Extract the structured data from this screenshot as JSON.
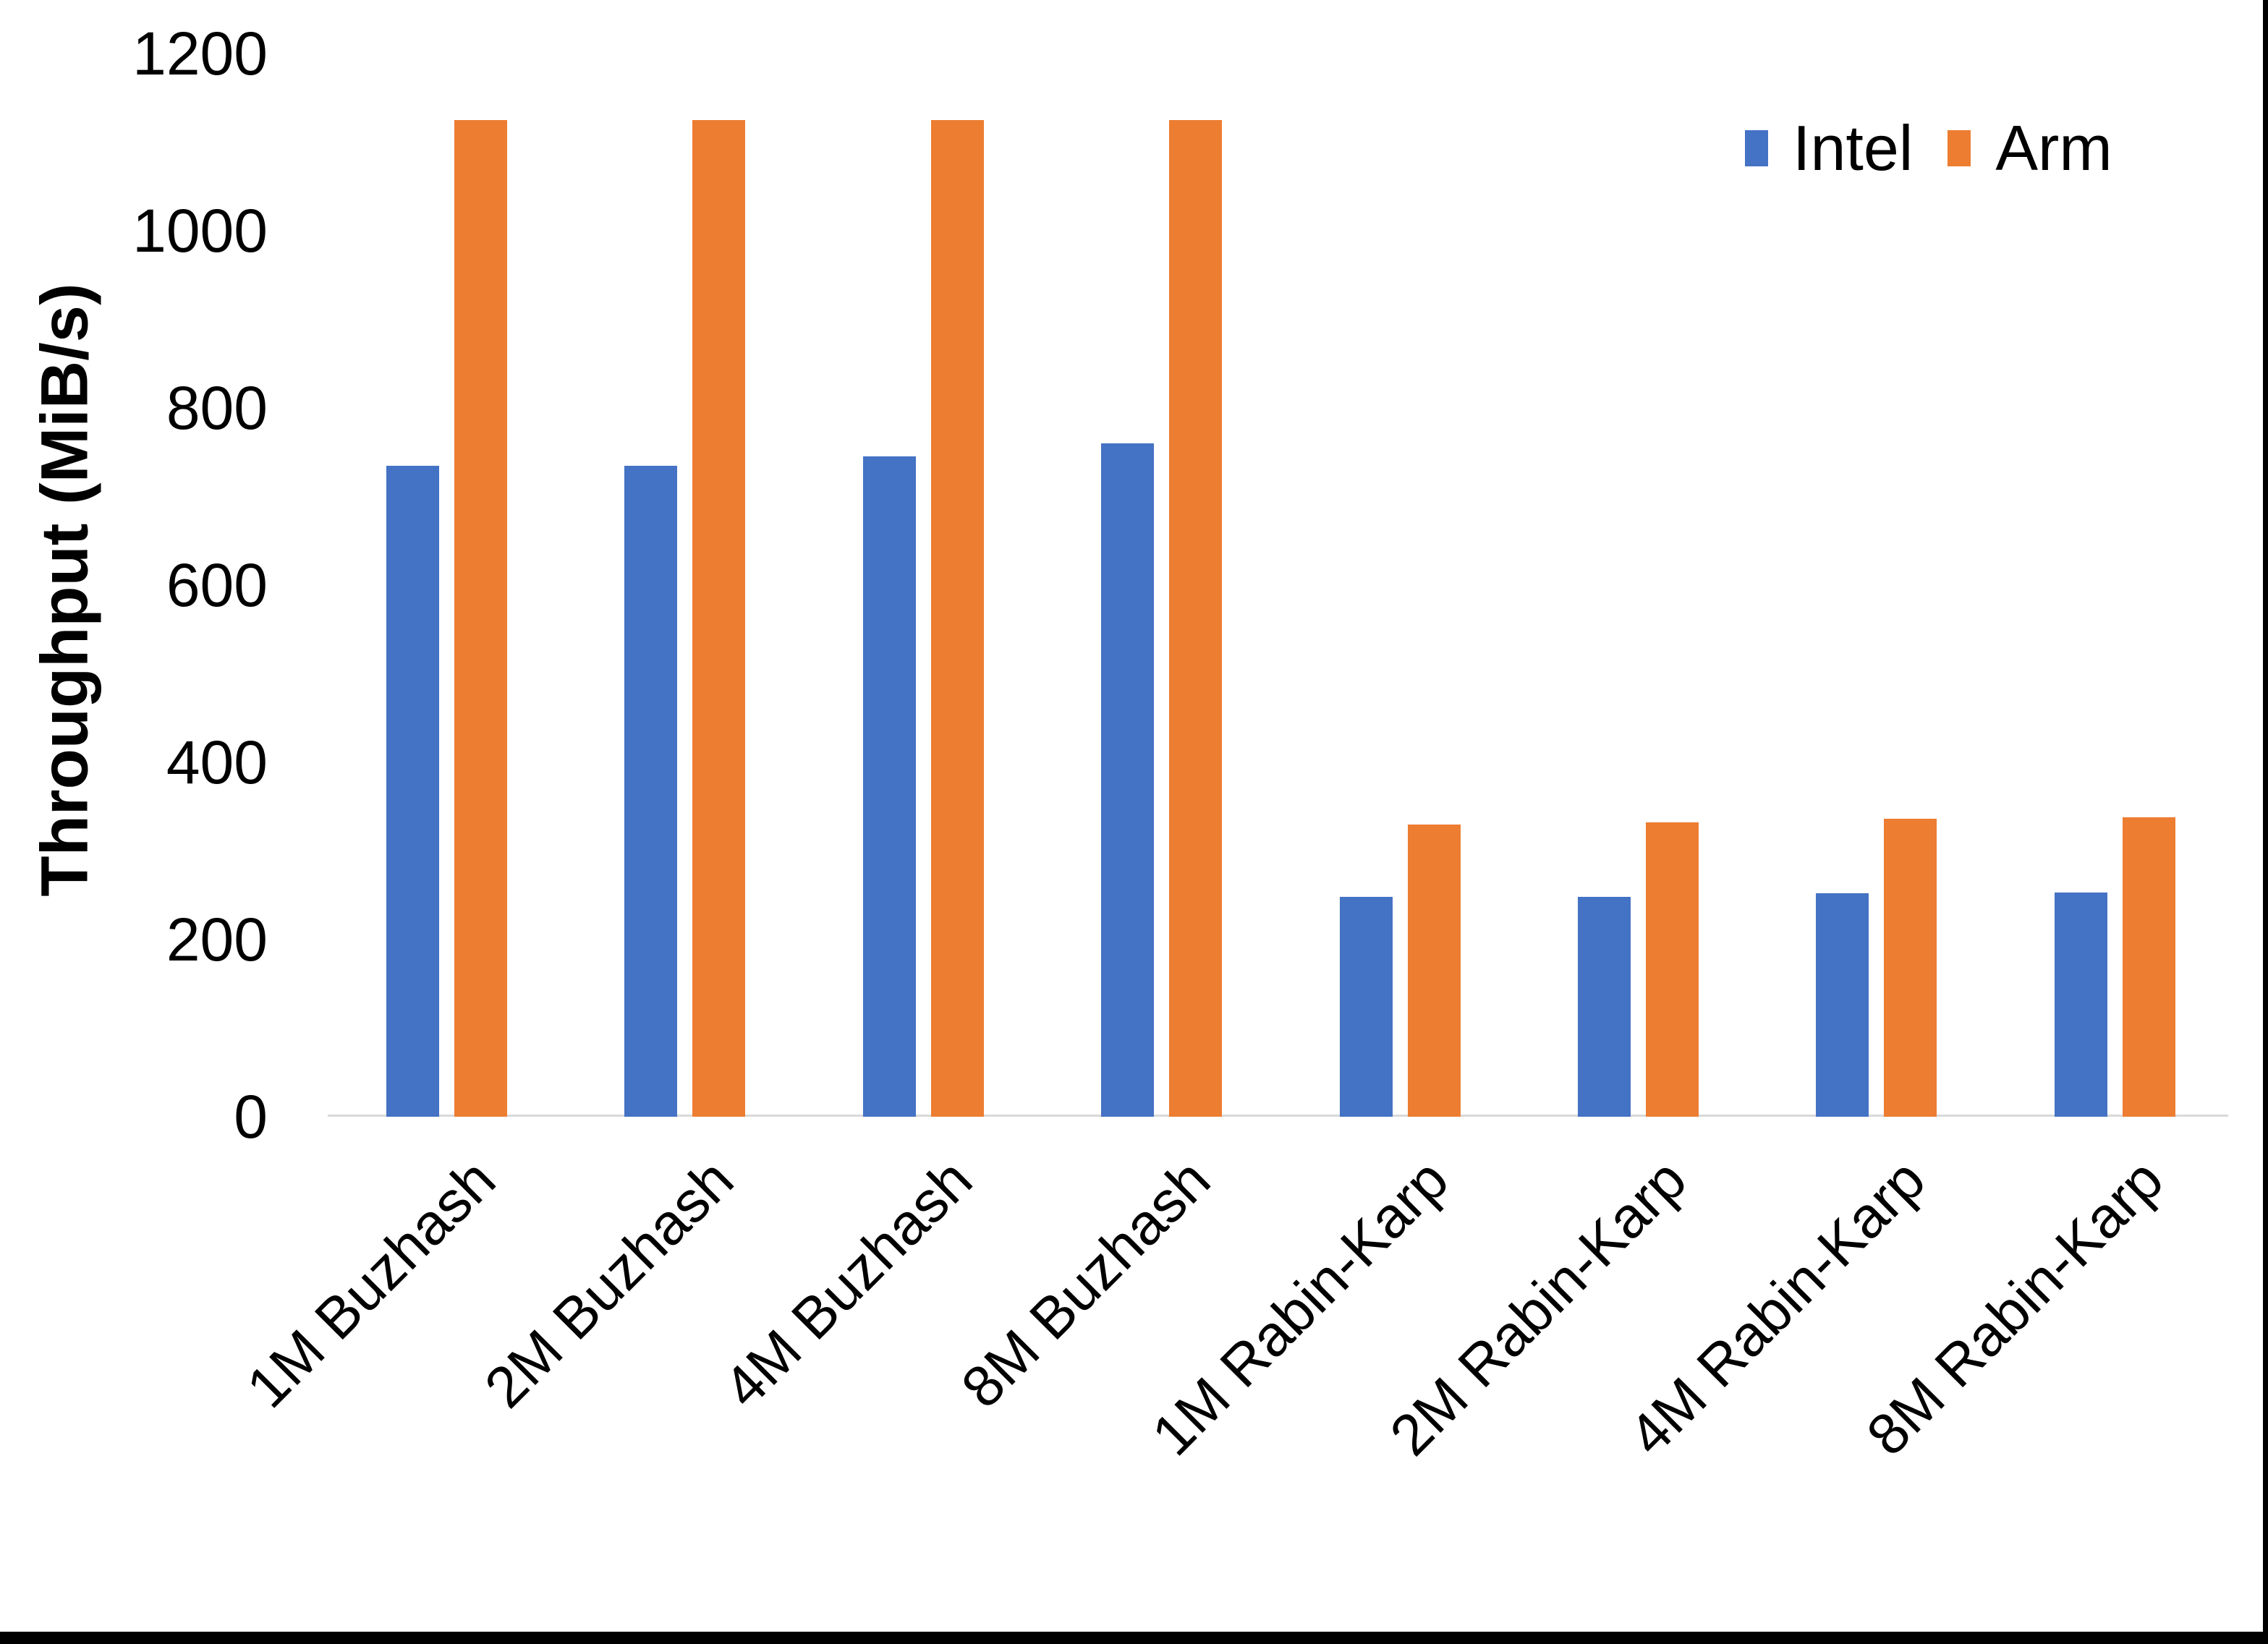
{
  "chart_data": {
    "type": "bar",
    "title": "",
    "xlabel": "",
    "ylabel": "Throughput (MiB/s)",
    "ylim": [
      0,
      1200
    ],
    "yticks": [
      0,
      200,
      400,
      600,
      800,
      1000,
      1200
    ],
    "grid": false,
    "legend_position": "top-right",
    "categories": [
      "1M Buzhash",
      "2M Buzhash",
      "4M Buzhash",
      "8M Buzhash",
      "1M Rabin-Karp",
      "2M Rabin-Karp",
      "4M Rabin-Karp",
      "8M Rabin-Karp"
    ],
    "series": [
      {
        "name": "Intel",
        "color": "#4472C4",
        "values": [
          735,
          735,
          745,
          760,
          248,
          248,
          252,
          253
        ]
      },
      {
        "name": "Arm",
        "color": "#ED7D31",
        "values": [
          1125,
          1125,
          1125,
          1125,
          330,
          332,
          336,
          338
        ]
      }
    ]
  },
  "colors": {
    "axis_line": "#D9D9D9",
    "text": "#000000",
    "border": "#000000",
    "background": "#FFFFFF"
  }
}
